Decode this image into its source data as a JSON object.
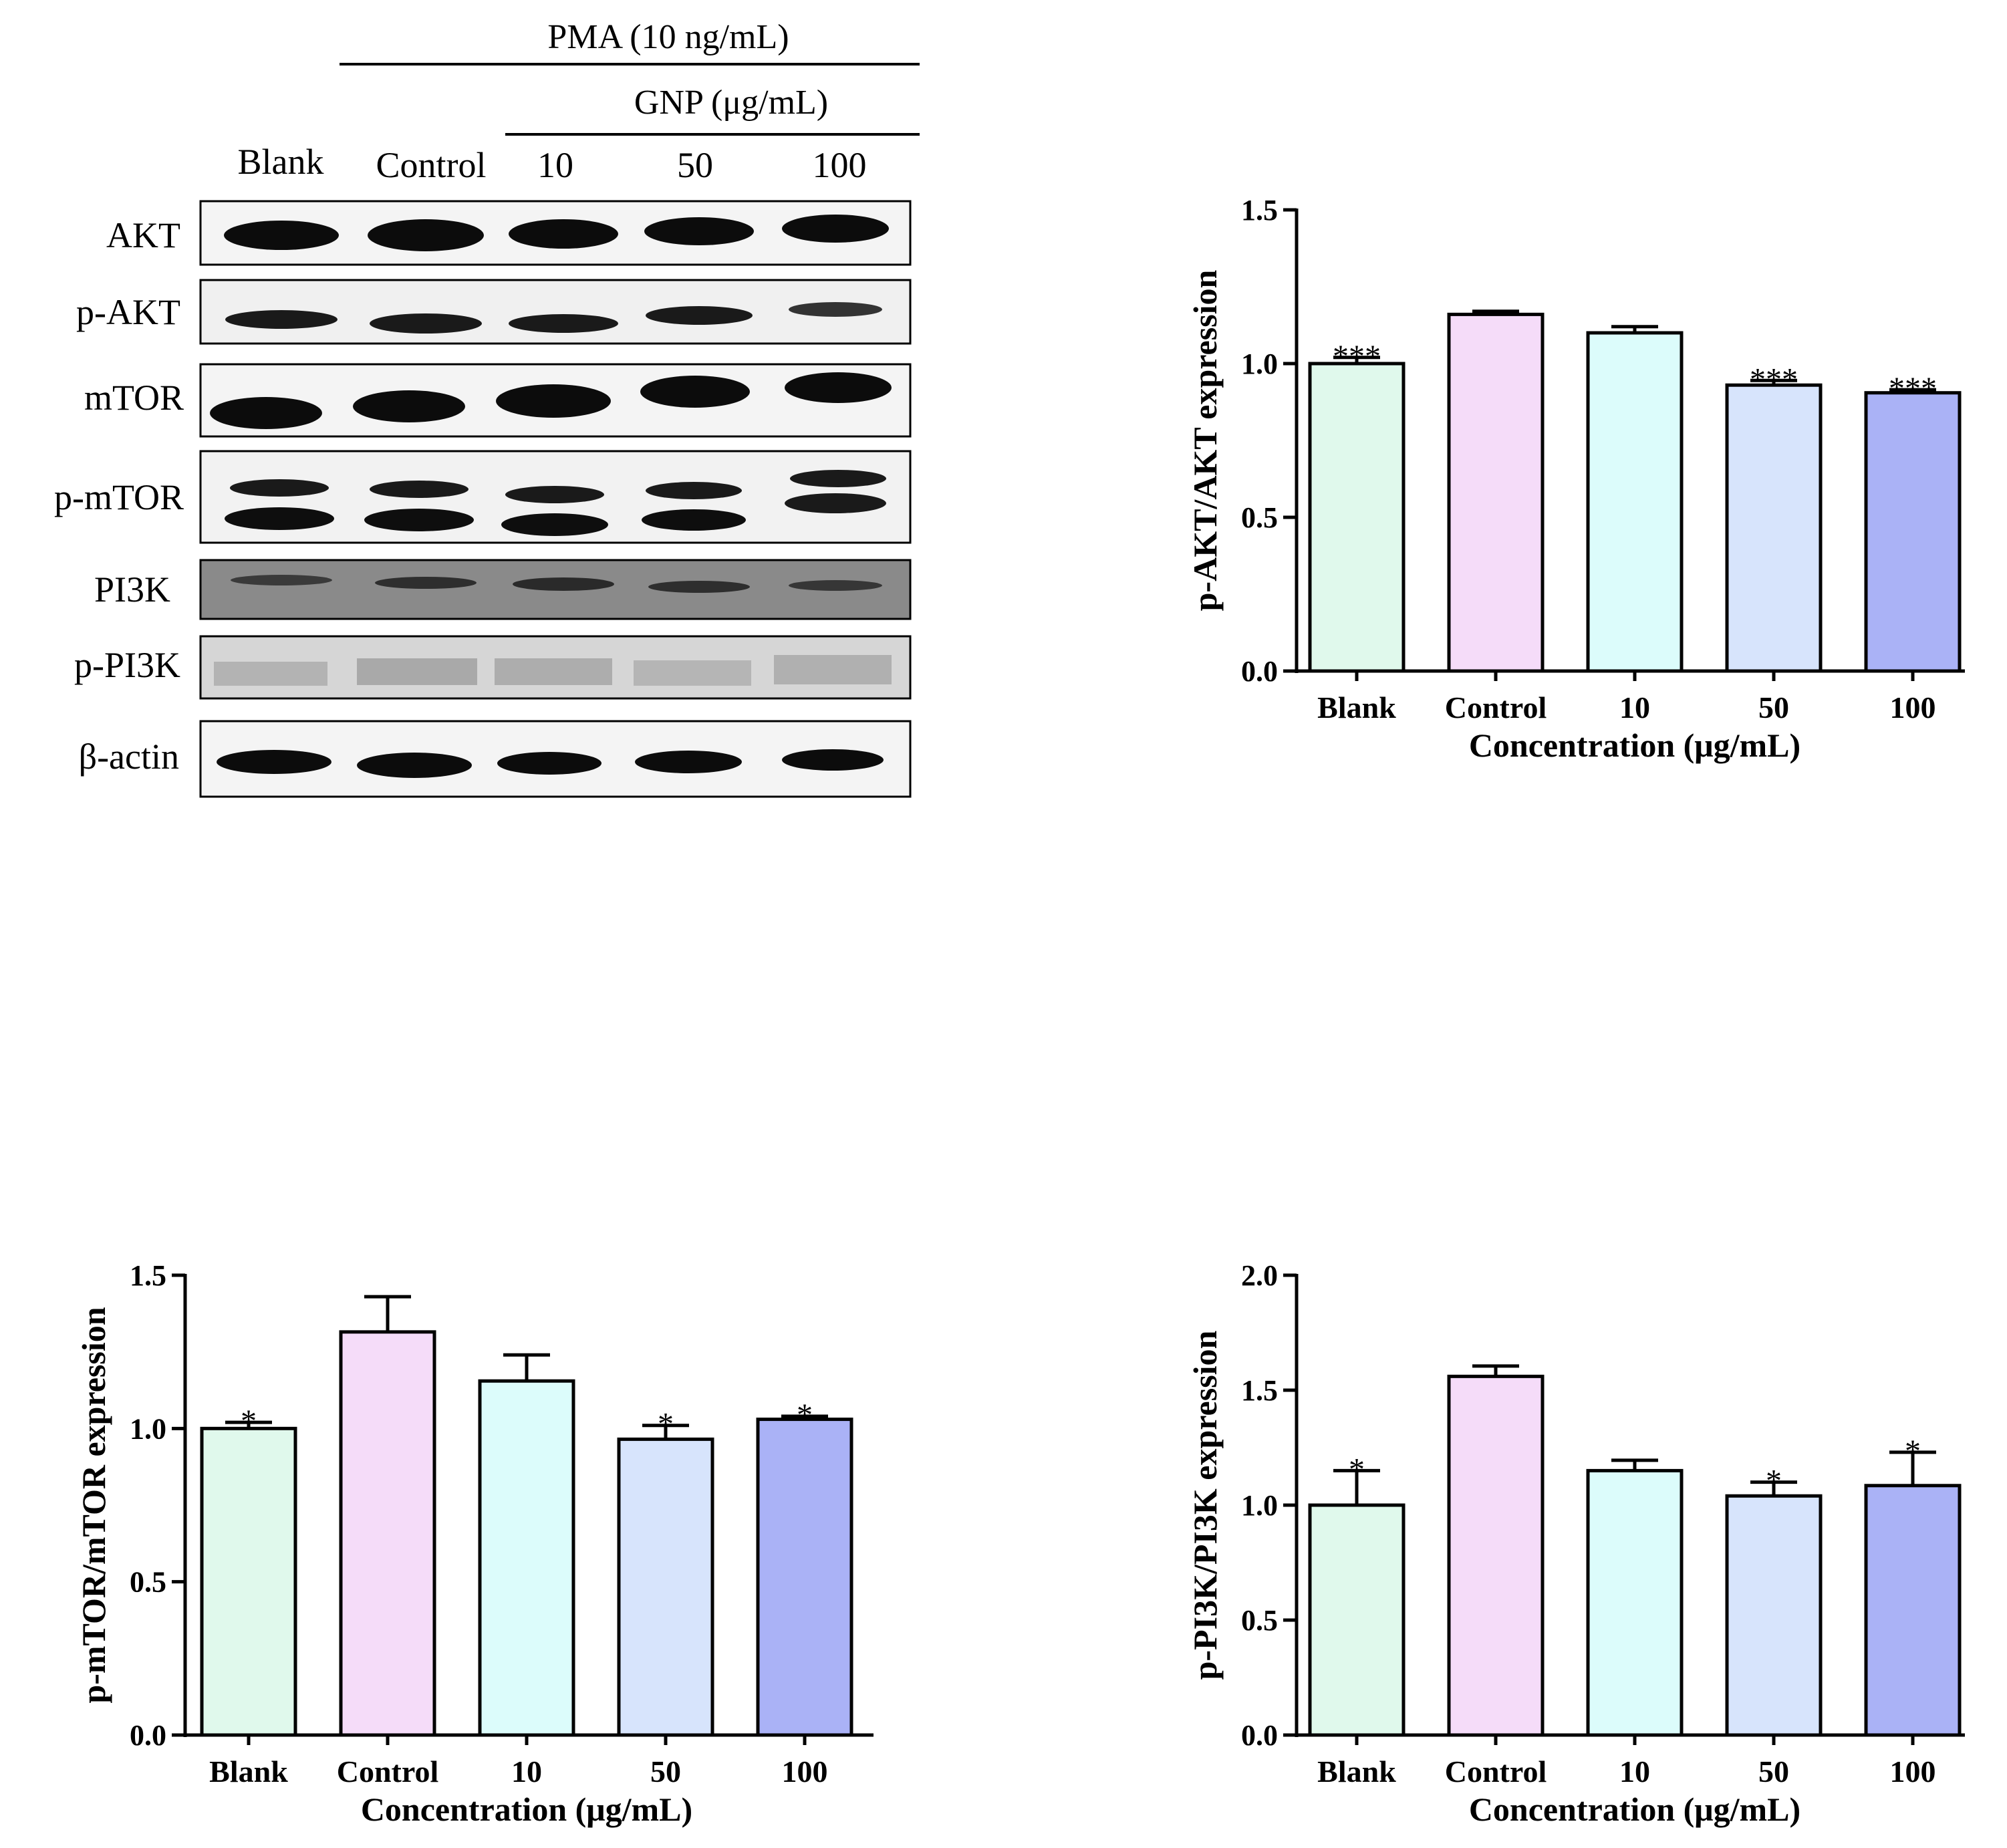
{
  "blot": {
    "header": "PMA (10 ng/mL)",
    "subheader": "GNP (μg/mL)",
    "lanes": [
      "Blank",
      "Control",
      "10",
      "50",
      "100"
    ],
    "rows": [
      "AKT",
      "p-AKT",
      "mTOR",
      "p-mTOR",
      "PI3K",
      "p-PI3K",
      "β-actin"
    ]
  },
  "colors": {
    "bars": [
      "#e0f9ec",
      "#f5dcf9",
      "#dcfcfb",
      "#d7e4fc",
      "#aab2f6"
    ],
    "stroke": "#000000"
  },
  "chart_data": [
    {
      "type": "bar",
      "title": "",
      "categories": [
        "Blank",
        "Control",
        "10",
        "50",
        "100"
      ],
      "values": [
        1.0,
        1.16,
        1.1,
        0.93,
        0.905
      ],
      "errors": [
        0.02,
        0.01,
        0.02,
        0.015,
        0.01
      ],
      "significance": [
        "***",
        "",
        "",
        "***",
        "***"
      ],
      "xlabel": "Concentration (μg/mL)",
      "ylabel": "p-AKT/AKT expression",
      "ylim": [
        0,
        1.5
      ],
      "yticks": [
        "0.0",
        "0.5",
        "1.0",
        "1.5"
      ],
      "grid": false
    },
    {
      "type": "bar",
      "title": "",
      "categories": [
        "Blank",
        "Control",
        "10",
        "50",
        "100"
      ],
      "values": [
        1.0,
        1.315,
        1.155,
        0.965,
        1.03
      ],
      "errors": [
        0.02,
        0.115,
        0.085,
        0.045,
        0.01
      ],
      "significance": [
        "*",
        "",
        "",
        "*",
        "*"
      ],
      "xlabel": "Concentration (μg/mL)",
      "ylabel": "p-mTOR/mTOR expression",
      "ylim": [
        0,
        1.5
      ],
      "yticks": [
        "0.0",
        "0.5",
        "1.0",
        "1.5"
      ],
      "grid": false
    },
    {
      "type": "bar",
      "title": "",
      "categories": [
        "Blank",
        "Control",
        "10",
        "50",
        "100"
      ],
      "values": [
        1.0,
        1.56,
        1.15,
        1.04,
        1.085
      ],
      "errors": [
        0.15,
        0.045,
        0.045,
        0.06,
        0.145
      ],
      "significance": [
        "*",
        "",
        "",
        "*",
        "*"
      ],
      "xlabel": "Concentration (μg/mL)",
      "ylabel": "p-PI3K/PI3K expression",
      "ylim": [
        0,
        2.0
      ],
      "yticks": [
        "0.0",
        "0.5",
        "1.0",
        "1.5",
        "2.0"
      ],
      "grid": false
    }
  ]
}
